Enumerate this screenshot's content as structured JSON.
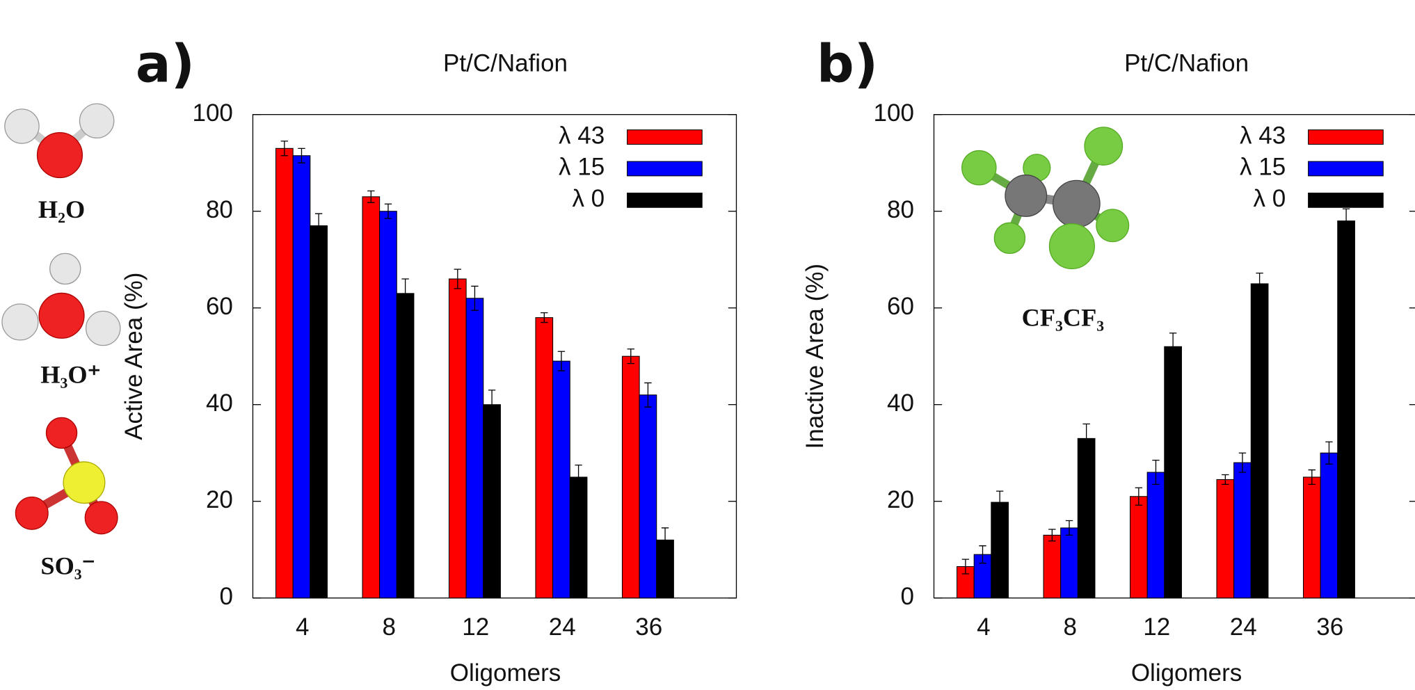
{
  "molecule_labels": [
    "H₂O",
    "H₃O⁺",
    "SO₃⁻"
  ],
  "chart_data": [
    {
      "type": "bar",
      "panel": "a)",
      "title": "Pt/C/Nafion",
      "x_label": "Oligomers",
      "y_label": "Active Area (%)",
      "categories": [
        "4",
        "8",
        "12",
        "24",
        "36"
      ],
      "series": [
        {
          "name": "λ 43",
          "color": "#ff0000",
          "values": [
            93,
            83,
            66,
            58,
            50
          ],
          "errors": [
            1.5,
            1.2,
            2,
            1,
            1.5
          ]
        },
        {
          "name": "λ 15",
          "color": "#0000ff",
          "values": [
            91.5,
            80,
            62,
            49,
            42
          ],
          "errors": [
            1.5,
            1.5,
            2.5,
            2,
            2.5
          ]
        },
        {
          "name": "λ 0",
          "color": "#000000",
          "values": [
            77,
            63,
            40,
            25,
            12
          ],
          "errors": [
            2.5,
            3,
            3,
            2.5,
            2.5
          ]
        }
      ],
      "ylim": [
        0,
        100
      ],
      "yticks": [
        0,
        20,
        40,
        60,
        80,
        100
      ],
      "legend": "upper right"
    },
    {
      "type": "bar",
      "panel": "b)",
      "title": "Pt/C/Nafion",
      "x_label": "Oligomers",
      "y_label": "Inactive Area (%)",
      "inset_label": "CF₃CF₃",
      "categories": [
        "4",
        "8",
        "12",
        "24",
        "36"
      ],
      "series": [
        {
          "name": "λ 43",
          "color": "#ff0000",
          "values": [
            6.5,
            13,
            21,
            24.5,
            25
          ],
          "errors": [
            1.5,
            1.2,
            1.8,
            1,
            1.5
          ]
        },
        {
          "name": "λ 15",
          "color": "#0000ff",
          "values": [
            9,
            14.5,
            26,
            28,
            30
          ],
          "errors": [
            1.8,
            1.5,
            2.5,
            2,
            2.3
          ]
        },
        {
          "name": "λ 0",
          "color": "#000000",
          "values": [
            19.8,
            33,
            52,
            65,
            78
          ],
          "errors": [
            2.3,
            3,
            2.8,
            2.2,
            2.5
          ]
        }
      ],
      "ylim": [
        0,
        100
      ],
      "yticks": [
        0,
        20,
        40,
        60,
        80,
        100
      ],
      "legend": "upper right"
    }
  ]
}
